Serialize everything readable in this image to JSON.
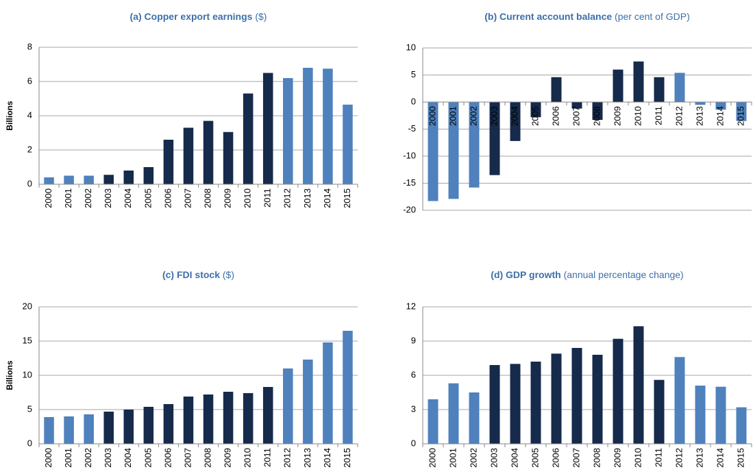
{
  "chart_data": [
    {
      "type": "bar",
      "title": "(a) Copper export earnings",
      "subtitle": "($)",
      "ylabel": "Billions",
      "categories": [
        "2000",
        "2001",
        "2002",
        "2003",
        "2004",
        "2005",
        "2006",
        "2007",
        "2008",
        "2009",
        "2010",
        "2011",
        "2012",
        "2013",
        "2014",
        "2015"
      ],
      "values": [
        0.4,
        0.5,
        0.5,
        0.55,
        0.8,
        1.0,
        2.6,
        3.3,
        3.7,
        3.05,
        5.3,
        6.5,
        6.2,
        6.8,
        6.75,
        4.65
      ],
      "colors": [
        "#4f81bd",
        "#4f81bd",
        "#4f81bd",
        "#162a4b",
        "#162a4b",
        "#162a4b",
        "#162a4b",
        "#162a4b",
        "#162a4b",
        "#162a4b",
        "#162a4b",
        "#162a4b",
        "#4f81bd",
        "#4f81bd",
        "#4f81bd",
        "#4f81bd"
      ],
      "ylim": [
        0,
        8
      ],
      "yticks": [
        0,
        2,
        4,
        6,
        8
      ],
      "grid": true
    },
    {
      "type": "bar",
      "title": "(b) Current account balance",
      "subtitle": "(per cent of GDP)",
      "categories": [
        "2000",
        "2001",
        "2002",
        "2003",
        "2004",
        "2005",
        "2006",
        "2007",
        "2008",
        "2009",
        "2010",
        "2011",
        "2012",
        "2013",
        "2014",
        "2015"
      ],
      "values": [
        -18.3,
        -17.9,
        -15.8,
        -13.5,
        -7.2,
        -2.8,
        4.6,
        -1.2,
        -3.3,
        6.0,
        7.5,
        4.6,
        5.4,
        -0.5,
        -1.4,
        -3.5
      ],
      "colors": [
        "#4f81bd",
        "#4f81bd",
        "#4f81bd",
        "#162a4b",
        "#162a4b",
        "#162a4b",
        "#162a4b",
        "#162a4b",
        "#162a4b",
        "#162a4b",
        "#162a4b",
        "#162a4b",
        "#4f81bd",
        "#4f81bd",
        "#4f81bd",
        "#4f81bd"
      ],
      "ylim": [
        -20,
        10
      ],
      "yticks": [
        -20,
        -15,
        -10,
        -5,
        0,
        5,
        10
      ],
      "grid": true
    },
    {
      "type": "bar",
      "title": "(c) FDI stock",
      "subtitle": "($)",
      "ylabel": "Billions",
      "categories": [
        "2000",
        "2001",
        "2002",
        "2003",
        "2004",
        "2005",
        "2006",
        "2007",
        "2008",
        "2009",
        "2010",
        "2011",
        "2012",
        "2013",
        "2014",
        "2015"
      ],
      "values": [
        3.9,
        4.0,
        4.3,
        4.7,
        5.0,
        5.4,
        5.8,
        6.9,
        7.2,
        7.6,
        7.4,
        8.3,
        11.0,
        12.3,
        14.8,
        16.5
      ],
      "colors": [
        "#4f81bd",
        "#4f81bd",
        "#4f81bd",
        "#162a4b",
        "#162a4b",
        "#162a4b",
        "#162a4b",
        "#162a4b",
        "#162a4b",
        "#162a4b",
        "#162a4b",
        "#162a4b",
        "#4f81bd",
        "#4f81bd",
        "#4f81bd",
        "#4f81bd"
      ],
      "ylim": [
        0,
        20
      ],
      "yticks": [
        0,
        5,
        10,
        15,
        20
      ],
      "grid": true
    },
    {
      "type": "bar",
      "title": "(d) GDP growth",
      "subtitle": "(annual percentage change)",
      "categories": [
        "2000",
        "2001",
        "2002",
        "2003",
        "2004",
        "2005",
        "2006",
        "2007",
        "2008",
        "2009",
        "2010",
        "2011",
        "2012",
        "2013",
        "2014",
        "2015"
      ],
      "values": [
        3.9,
        5.3,
        4.5,
        6.9,
        7.0,
        7.2,
        7.9,
        8.4,
        7.8,
        9.2,
        10.3,
        5.6,
        7.6,
        5.1,
        5.0,
        3.2
      ],
      "colors": [
        "#4f81bd",
        "#4f81bd",
        "#4f81bd",
        "#162a4b",
        "#162a4b",
        "#162a4b",
        "#162a4b",
        "#162a4b",
        "#162a4b",
        "#162a4b",
        "#162a4b",
        "#162a4b",
        "#4f81bd",
        "#4f81bd",
        "#4f81bd",
        "#4f81bd"
      ],
      "ylim": [
        0,
        12
      ],
      "yticks": [
        0,
        3,
        6,
        9,
        12
      ],
      "grid": true
    }
  ]
}
